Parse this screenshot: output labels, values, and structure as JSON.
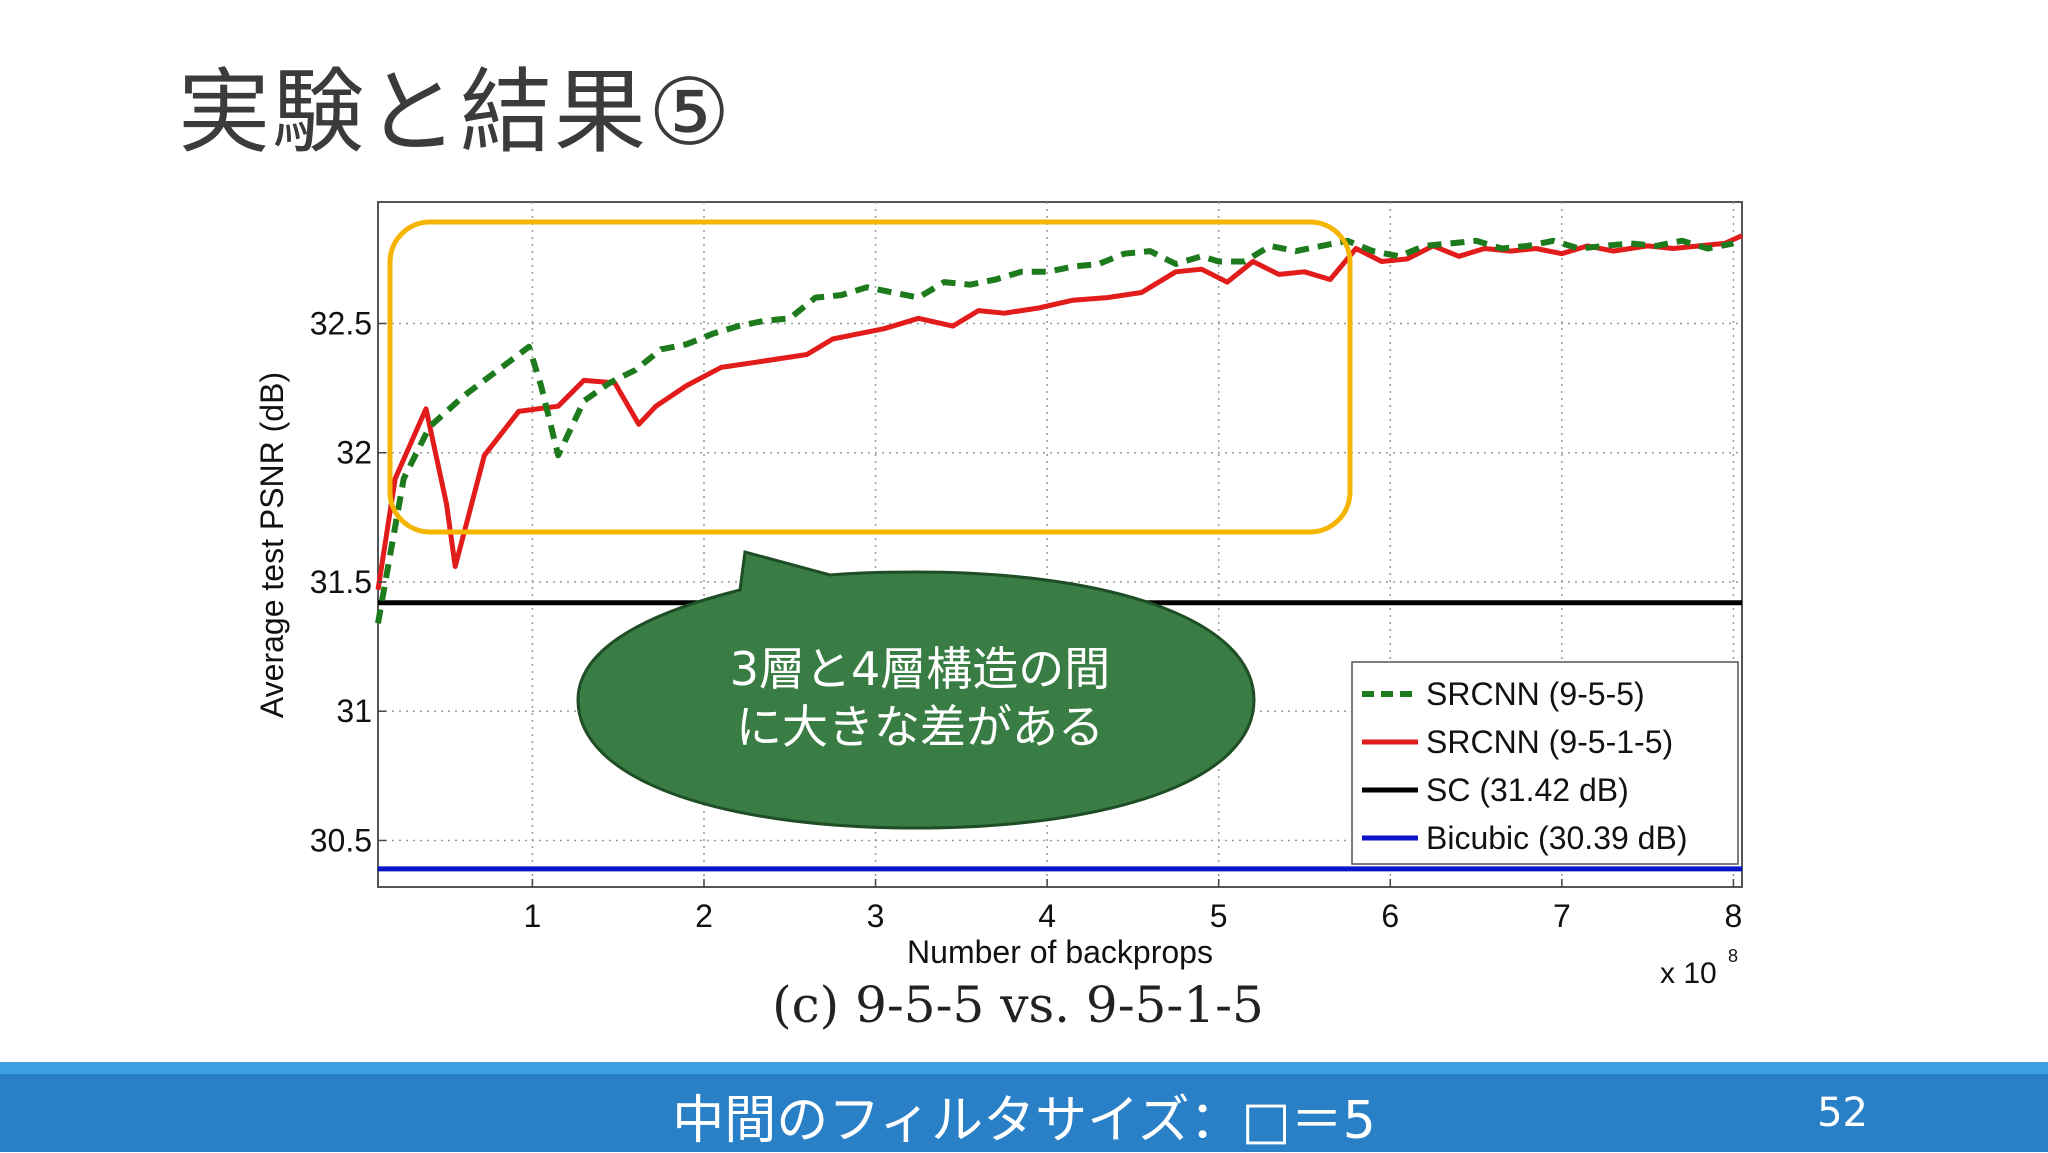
{
  "slide": {
    "title": "実験と結果⑤",
    "page_number": "52",
    "footer_text": "中間のフィルタサイズ：□＝5"
  },
  "callout": {
    "line1": "3層と4層構造の間",
    "line2": "に大きな差がある"
  },
  "colors": {
    "srcnn_955": "#1d7a1d",
    "srcnn_9515": "#e21b1b",
    "sc": "#000000",
    "bicubic": "#0a14c8",
    "highlight_box": "#f4b400",
    "callout_fill": "#3a7d44",
    "footer": "#2a80c7"
  },
  "chart_data": {
    "type": "line",
    "title": "",
    "caption": "(c) 9-5-5 vs. 9-5-1-5",
    "xlabel": "Number of backprops",
    "ylabel": "Average test PSNR (dB)",
    "x_multiplier_label": "x 10",
    "x_multiplier_exp": "8",
    "xlim": [
      0.1,
      8.05
    ],
    "ylim": [
      30.32,
      32.97
    ],
    "xticks": [
      1,
      2,
      3,
      4,
      5,
      6,
      7,
      8
    ],
    "yticks": [
      30.5,
      31,
      31.5,
      32,
      32.5
    ],
    "ytick_labels": [
      "30.5",
      "31",
      "31.5",
      "32",
      "32.5"
    ],
    "grid": true,
    "legend_position": "bottom-right",
    "series": [
      {
        "name": "SRCNN (9-5-5)",
        "style": "dashed",
        "x": [
          0.1,
          0.25,
          0.4,
          0.6,
          0.8,
          0.98,
          1.05,
          1.15,
          1.3,
          1.45,
          1.6,
          1.75,
          1.9,
          2.05,
          2.2,
          2.35,
          2.5,
          2.65,
          2.8,
          2.95,
          3.1,
          3.25,
          3.4,
          3.55,
          3.7,
          3.85,
          4.0,
          4.15,
          4.3,
          4.45,
          4.6,
          4.75,
          4.9,
          5.0,
          5.15,
          5.3,
          5.45,
          5.6,
          5.75,
          5.9,
          6.05,
          6.2,
          6.35,
          6.5,
          6.65,
          6.8,
          6.95,
          7.1,
          7.25,
          7.4,
          7.55,
          7.7,
          7.85,
          8.0
        ],
        "y": [
          31.34,
          31.9,
          32.1,
          32.22,
          32.32,
          32.41,
          32.26,
          31.99,
          32.2,
          32.27,
          32.32,
          32.4,
          32.42,
          32.46,
          32.49,
          32.51,
          32.52,
          32.6,
          32.61,
          32.64,
          32.62,
          32.6,
          32.66,
          32.65,
          32.67,
          32.7,
          32.7,
          32.72,
          32.73,
          32.77,
          32.78,
          32.73,
          32.76,
          32.74,
          32.74,
          32.8,
          32.78,
          32.8,
          32.82,
          32.78,
          32.76,
          32.8,
          32.81,
          32.82,
          32.79,
          32.8,
          32.82,
          32.79,
          32.8,
          32.81,
          32.8,
          32.82,
          32.79,
          32.81
        ]
      },
      {
        "name": "SRCNN (9-5-1-5)",
        "style": "solid",
        "x": [
          0.1,
          0.2,
          0.38,
          0.5,
          0.55,
          0.72,
          0.92,
          1.15,
          1.3,
          1.48,
          1.62,
          1.72,
          1.9,
          2.1,
          2.3,
          2.5,
          2.6,
          2.75,
          2.9,
          3.05,
          3.25,
          3.45,
          3.6,
          3.75,
          3.95,
          4.15,
          4.35,
          4.55,
          4.75,
          4.9,
          5.05,
          5.2,
          5.35,
          5.5,
          5.65,
          5.8,
          5.95,
          6.1,
          6.25,
          6.4,
          6.55,
          6.7,
          6.85,
          7.0,
          7.15,
          7.3,
          7.5,
          7.65,
          7.8,
          7.95,
          8.05
        ],
        "y": [
          31.47,
          31.9,
          32.17,
          31.8,
          31.56,
          31.99,
          32.16,
          32.18,
          32.28,
          32.27,
          32.11,
          32.18,
          32.26,
          32.33,
          32.35,
          32.37,
          32.38,
          32.44,
          32.46,
          32.48,
          32.52,
          32.49,
          32.55,
          32.54,
          32.56,
          32.59,
          32.6,
          32.62,
          32.7,
          32.71,
          32.66,
          32.74,
          32.69,
          32.7,
          32.67,
          32.79,
          32.74,
          32.75,
          32.8,
          32.76,
          32.79,
          32.78,
          32.79,
          32.77,
          32.8,
          32.78,
          32.8,
          32.79,
          32.8,
          32.81,
          32.84
        ]
      },
      {
        "name": "SC (31.42 dB)",
        "style": "solid",
        "x": [
          0.1,
          8.05
        ],
        "y": [
          31.42,
          31.42
        ]
      },
      {
        "name": "Bicubic (30.39 dB)",
        "style": "solid",
        "x": [
          0.1,
          8.05
        ],
        "y": [
          30.39,
          30.39
        ]
      }
    ]
  }
}
